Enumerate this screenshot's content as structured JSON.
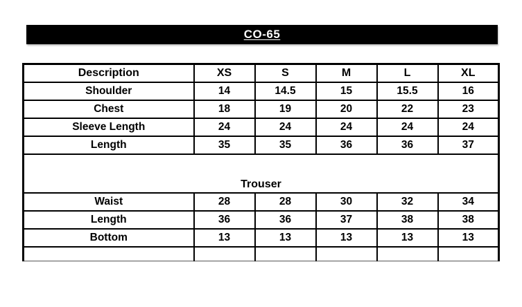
{
  "title_bar": {
    "label": "CO-65",
    "bg_color": "#000000",
    "text_color": "#ffffff"
  },
  "size_chart": {
    "columns": [
      "Description",
      "XS",
      "S",
      "M",
      "L",
      "XL"
    ],
    "shirt_rows": [
      {
        "label": "Shoulder",
        "values": [
          "14",
          "14.5",
          "15",
          "15.5",
          "16"
        ]
      },
      {
        "label": "Chest",
        "values": [
          "18",
          "19",
          "20",
          "22",
          "23"
        ]
      },
      {
        "label": "Sleeve Length",
        "values": [
          "24",
          "24",
          "24",
          "24",
          "24"
        ]
      },
      {
        "label": "Length",
        "values": [
          "35",
          "35",
          "36",
          "36",
          "37"
        ]
      }
    ],
    "trouser_section_label": "Trouser",
    "trouser_rows": [
      {
        "label": "Waist",
        "values": [
          "28",
          "28",
          "30",
          "32",
          "34"
        ]
      },
      {
        "label": "Length",
        "values": [
          "36",
          "36",
          "37",
          "38",
          "38"
        ]
      },
      {
        "label": "Bottom",
        "values": [
          "13",
          "13",
          "13",
          "13",
          "13"
        ]
      }
    ]
  }
}
